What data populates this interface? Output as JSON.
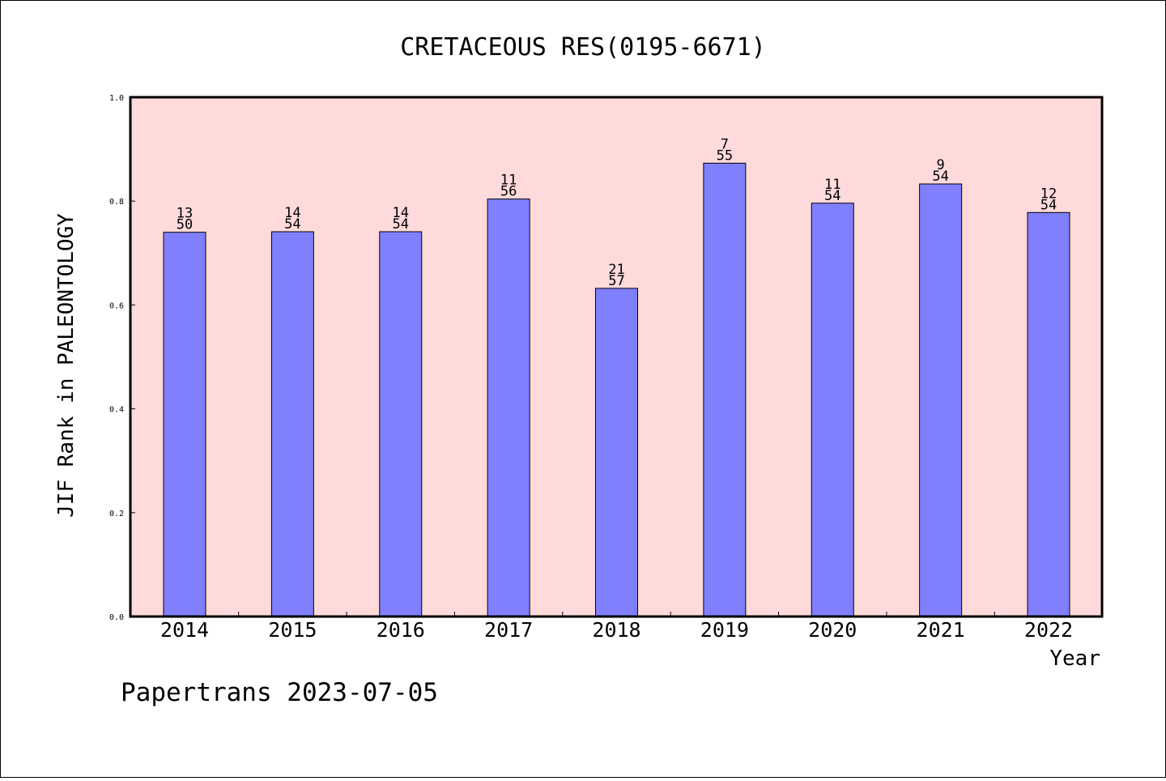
{
  "chart_data": {
    "type": "bar",
    "title": "CRETACEOUS RES(0195-6671)",
    "xlabel": "Year",
    "ylabel": "JIF Rank in PALEONTOLOGY",
    "ylim": [
      0,
      1.0
    ],
    "yticks": [
      "0.0",
      "0.2",
      "0.4",
      "0.6",
      "0.8",
      "1.0"
    ],
    "categories": [
      "2014",
      "2015",
      "2016",
      "2017",
      "2018",
      "2019",
      "2020",
      "2021",
      "2022"
    ],
    "values": [
      0.74,
      0.741,
      0.741,
      0.804,
      0.632,
      0.873,
      0.796,
      0.833,
      0.778
    ],
    "ranks": [
      "13",
      "14",
      "14",
      "11",
      "21",
      "7",
      "11",
      "9",
      "12"
    ],
    "totals": [
      "50",
      "54",
      "54",
      "56",
      "57",
      "55",
      "54",
      "54",
      "54"
    ],
    "grid": false,
    "colors": {
      "plot_bg": "#ffdada",
      "bar": "#8080ff",
      "border": "#000000"
    }
  },
  "footer": "Papertrans 2023-07-05"
}
